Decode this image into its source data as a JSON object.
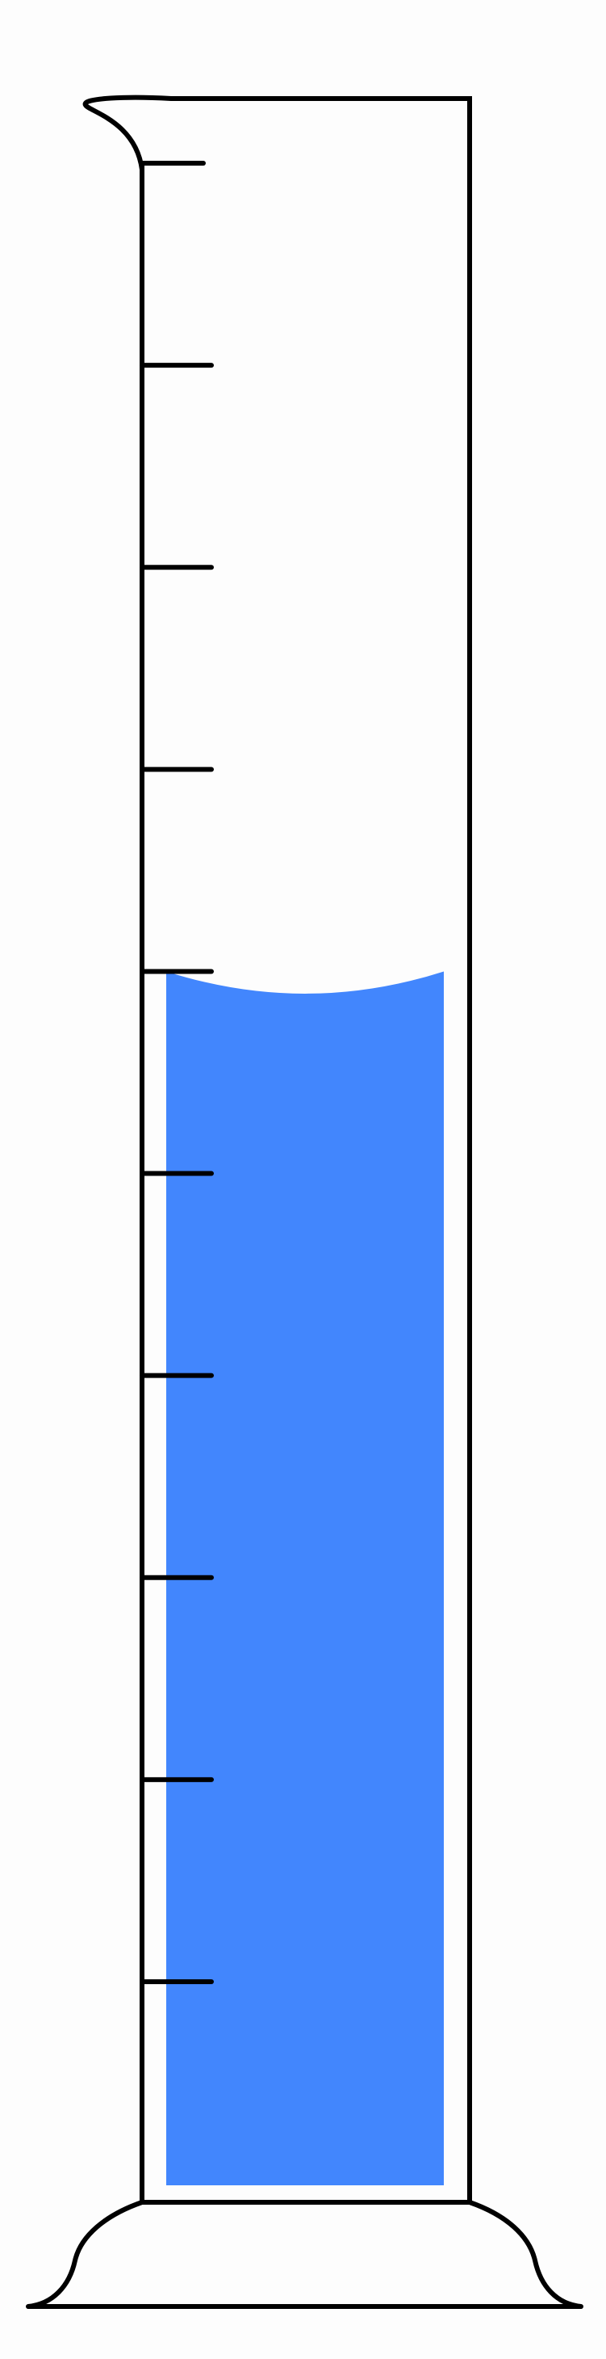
{
  "cylinder": {
    "tick_count": 10,
    "liquid_level_ticks_from_bottom": 5,
    "colors": {
      "outline": "#000000",
      "liquid": "#4286fd",
      "background": "#fdfdfd"
    }
  }
}
